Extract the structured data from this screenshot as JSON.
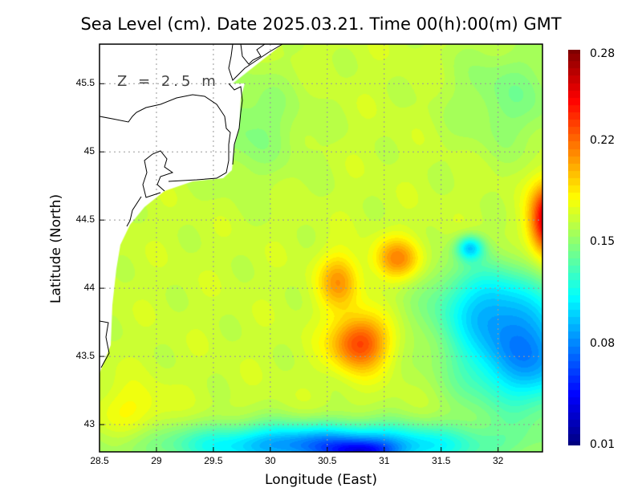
{
  "chart_data": {
    "type": "heatmap",
    "title": "Sea Level (cm). Date 2025.03.21. Time 00(h):00(m) GMT",
    "xlabel": "Longitude (East)",
    "ylabel": "Latitude (North)",
    "annotation": "Z = 2.5 m",
    "xlim": [
      28.5,
      32.39
    ],
    "ylim": [
      42.8,
      45.79
    ],
    "x_ticks": [
      "28.5",
      "29",
      "29.5",
      "30",
      "30.5",
      "31",
      "31.5",
      "32"
    ],
    "x_tick_values": [
      28.5,
      29,
      29.5,
      30,
      30.5,
      31,
      31.5,
      32
    ],
    "y_ticks": [
      "43",
      "43.5",
      "44",
      "44.5",
      "45",
      "45.5"
    ],
    "y_tick_values": [
      43,
      43.5,
      44,
      44.5,
      45,
      45.5
    ],
    "grid": true,
    "colorbar": {
      "min": 0.01,
      "max": 0.28,
      "ticks": [
        "0.01",
        "0.08",
        "0.15",
        "0.22",
        "0.28"
      ],
      "tick_values": [
        0.01,
        0.08,
        0.15,
        0.22,
        0.28
      ],
      "colormap": "jet",
      "placement": "right"
    },
    "field": {
      "base_value": 0.165,
      "features": [
        {
          "name": "orange-maximum-south",
          "lon": 30.78,
          "lat": 43.6,
          "delta": 0.065,
          "spread_lon": 0.25,
          "spread_lat": 0.2
        },
        {
          "name": "orange-maximum-mid",
          "lon": 30.6,
          "lat": 44.05,
          "delta": 0.04,
          "spread_lon": 0.18,
          "spread_lat": 0.2
        },
        {
          "name": "orange-maximum-northeast",
          "lon": 31.12,
          "lat": 44.22,
          "delta": 0.045,
          "spread_lon": 0.2,
          "spread_lat": 0.15
        },
        {
          "name": "red-maximum-east",
          "lon": 32.45,
          "lat": 44.5,
          "delta": 0.11,
          "spread_lon": 0.16,
          "spread_lat": 0.25
        },
        {
          "name": "cyan-minimum",
          "lon": 31.75,
          "lat": 44.3,
          "delta": -0.06,
          "spread_lon": 0.12,
          "spread_lat": 0.09
        },
        {
          "name": "blue-southeast",
          "lon": 32.25,
          "lat": 43.5,
          "delta": -0.08,
          "spread_lon": 0.6,
          "spread_lat": 0.4
        },
        {
          "name": "east-transition",
          "lon": 31.9,
          "lat": 43.9,
          "delta": -0.05,
          "spread_lon": 0.5,
          "spread_lat": 0.3
        },
        {
          "name": "south-band",
          "lon": 30.5,
          "lat": 42.85,
          "delta": -0.09,
          "spread_lon": 1.3,
          "spread_lat": 0.16
        },
        {
          "name": "south-deep",
          "lon": 30.8,
          "lat": 42.8,
          "delta": -0.05,
          "spread_lon": 0.3,
          "spread_lat": 0.08
        },
        {
          "name": "northwest-green",
          "lon": 29.8,
          "lat": 45.2,
          "delta": -0.018,
          "spread_lon": 0.5,
          "spread_lat": 0.4
        },
        {
          "name": "northeast-green",
          "lon": 32.1,
          "lat": 45.4,
          "delta": -0.02,
          "spread_lon": 0.5,
          "spread_lat": 0.4
        },
        {
          "name": "southwest-yellow",
          "lon": 28.8,
          "lat": 43.1,
          "delta": 0.015,
          "spread_lon": 0.3,
          "spread_lat": 0.2
        }
      ]
    }
  }
}
